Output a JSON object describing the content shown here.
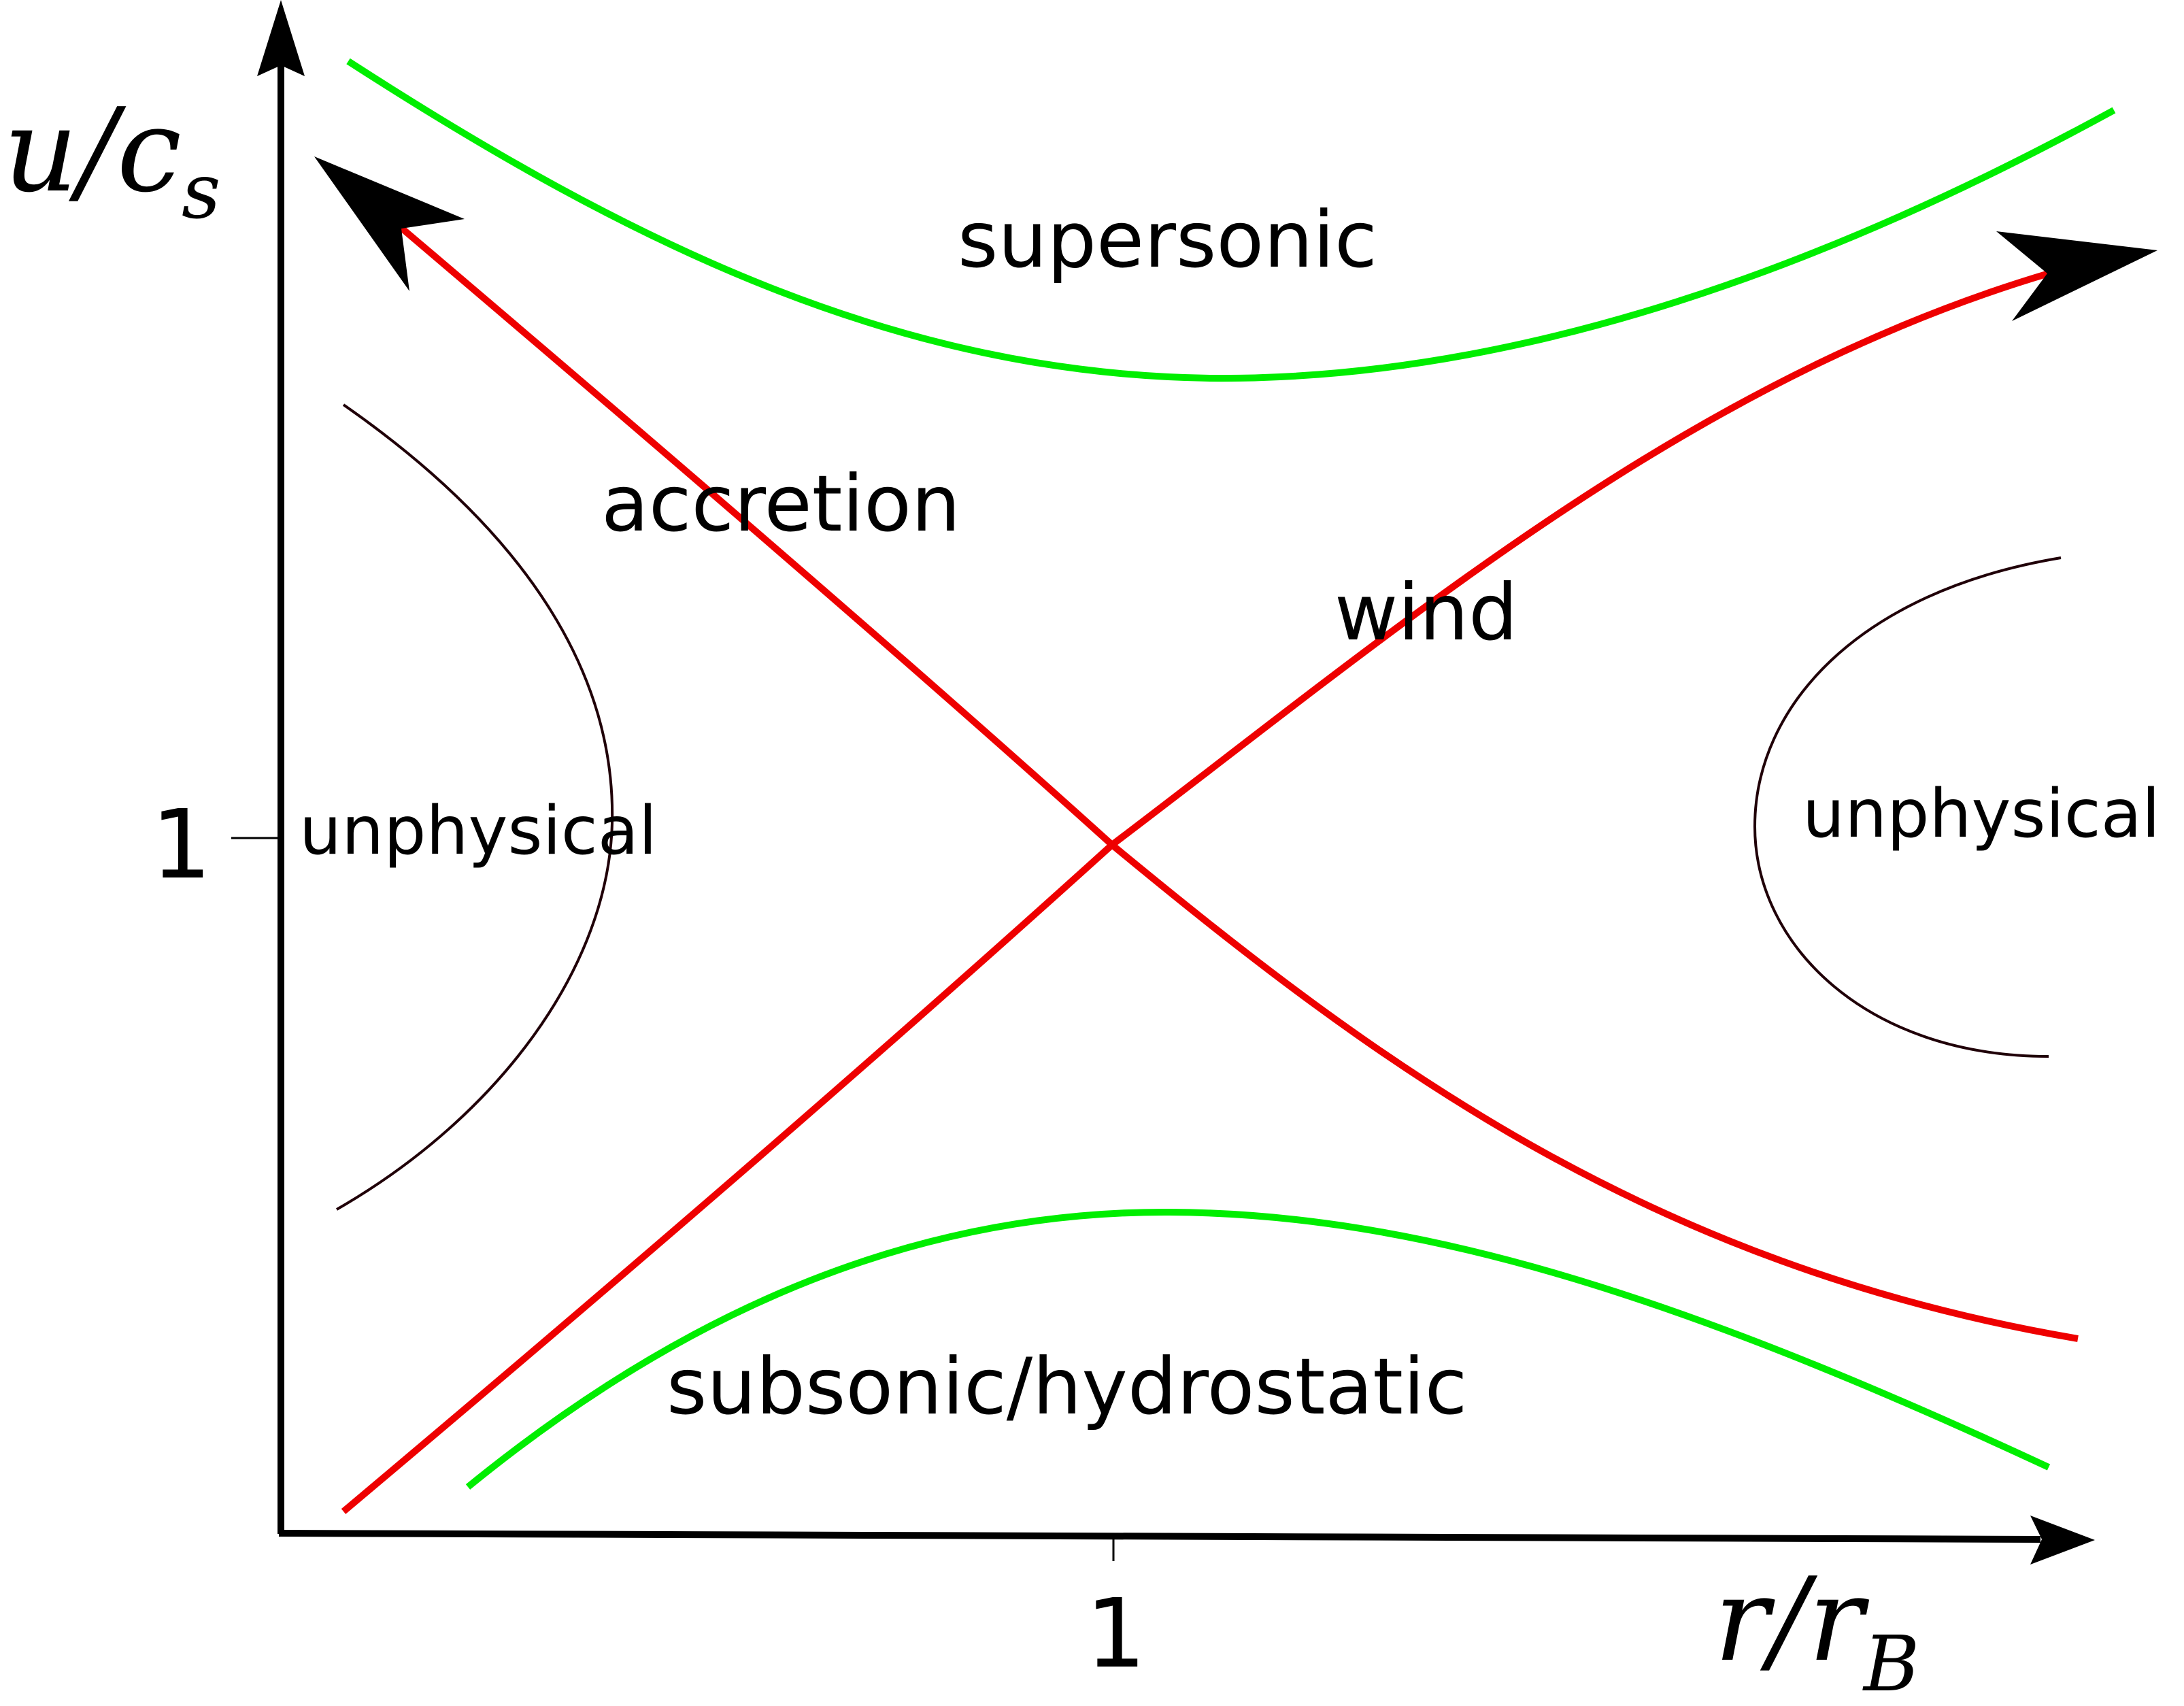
{
  "labels": {
    "supersonic": "supersonic",
    "accretion": "accretion",
    "wind": "wind",
    "unphysical_left": "unphysical",
    "unphysical_right": "unphysical",
    "subsonic": "subsonic/hydrostatic"
  },
  "axes": {
    "x_tick": "1",
    "y_tick": "1",
    "x_label_main": "r/r",
    "x_label_sub": "B",
    "y_label_main": "u/c",
    "y_label_sub": "s"
  },
  "colors": {
    "transonic": "#ee0000",
    "bounding": "#00ee00",
    "unphysical": "#200008",
    "axis": "#000000"
  }
}
